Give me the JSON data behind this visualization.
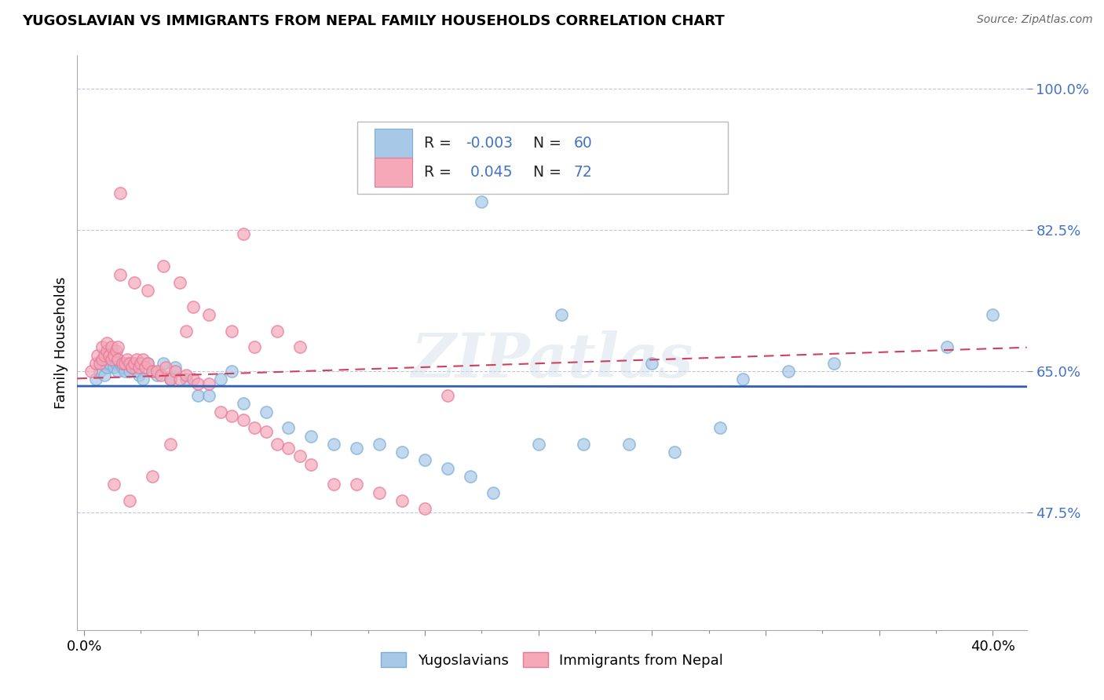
{
  "title": "YUGOSLAVIAN VS IMMIGRANTS FROM NEPAL FAMILY HOUSEHOLDS CORRELATION CHART",
  "source": "Source: ZipAtlas.com",
  "ylabel": "Family Households",
  "yticks": [
    "47.5%",
    "65.0%",
    "82.5%",
    "100.0%"
  ],
  "ytick_vals": [
    0.475,
    0.65,
    0.825,
    1.0
  ],
  "ymin": 0.33,
  "ymax": 1.04,
  "xmin": -0.003,
  "xmax": 0.415,
  "r_blue": -0.003,
  "n_blue": 60,
  "r_pink": 0.045,
  "n_pink": 72,
  "blue_marker_color": "#a8c8e8",
  "pink_marker_color": "#f4a8b8",
  "blue_edge_color": "#7aaed4",
  "pink_edge_color": "#e87898",
  "trend_blue": "#3060b0",
  "trend_pink": "#d04060",
  "watermark": "ZIPatlas",
  "legend_label_blue": "Yugoslavians",
  "legend_label_pink": "Immigrants from Nepal",
  "blue_legend_color": "#a8c8e8",
  "pink_legend_color": "#f4a8b8",
  "blue_x": [
    0.005,
    0.007,
    0.008,
    0.009,
    0.01,
    0.01,
    0.011,
    0.012,
    0.012,
    0.013,
    0.014,
    0.015,
    0.015,
    0.016,
    0.017,
    0.018,
    0.019,
    0.02,
    0.021,
    0.022,
    0.023,
    0.024,
    0.025,
    0.026,
    0.028,
    0.03,
    0.032,
    0.035,
    0.038,
    0.04,
    0.045,
    0.05,
    0.055,
    0.06,
    0.065,
    0.07,
    0.08,
    0.09,
    0.1,
    0.11,
    0.12,
    0.13,
    0.14,
    0.15,
    0.16,
    0.17,
    0.18,
    0.2,
    0.22,
    0.24,
    0.26,
    0.28,
    0.175,
    0.21,
    0.33,
    0.38,
    0.4,
    0.29,
    0.25,
    0.31
  ],
  "blue_y": [
    0.64,
    0.65,
    0.66,
    0.645,
    0.655,
    0.67,
    0.66,
    0.665,
    0.675,
    0.655,
    0.66,
    0.65,
    0.665,
    0.66,
    0.655,
    0.65,
    0.66,
    0.65,
    0.655,
    0.66,
    0.65,
    0.645,
    0.66,
    0.64,
    0.66,
    0.65,
    0.645,
    0.66,
    0.64,
    0.655,
    0.64,
    0.62,
    0.62,
    0.64,
    0.65,
    0.61,
    0.6,
    0.58,
    0.57,
    0.56,
    0.555,
    0.56,
    0.55,
    0.54,
    0.53,
    0.52,
    0.5,
    0.56,
    0.56,
    0.56,
    0.55,
    0.58,
    0.86,
    0.72,
    0.66,
    0.68,
    0.72,
    0.64,
    0.66,
    0.65
  ],
  "pink_x": [
    0.003,
    0.005,
    0.006,
    0.007,
    0.008,
    0.008,
    0.009,
    0.01,
    0.01,
    0.011,
    0.012,
    0.012,
    0.013,
    0.014,
    0.015,
    0.015,
    0.016,
    0.017,
    0.018,
    0.019,
    0.02,
    0.021,
    0.022,
    0.023,
    0.024,
    0.025,
    0.026,
    0.027,
    0.028,
    0.03,
    0.032,
    0.034,
    0.036,
    0.038,
    0.04,
    0.042,
    0.045,
    0.048,
    0.05,
    0.055,
    0.06,
    0.065,
    0.07,
    0.075,
    0.08,
    0.085,
    0.09,
    0.095,
    0.1,
    0.11,
    0.12,
    0.13,
    0.14,
    0.15,
    0.16,
    0.016,
    0.022,
    0.028,
    0.035,
    0.042,
    0.048,
    0.055,
    0.065,
    0.075,
    0.085,
    0.095,
    0.038,
    0.03,
    0.02,
    0.013,
    0.045,
    0.07
  ],
  "pink_y": [
    0.65,
    0.66,
    0.67,
    0.66,
    0.665,
    0.68,
    0.67,
    0.675,
    0.685,
    0.67,
    0.665,
    0.68,
    0.67,
    0.675,
    0.665,
    0.68,
    0.87,
    0.66,
    0.66,
    0.665,
    0.66,
    0.655,
    0.66,
    0.665,
    0.655,
    0.66,
    0.665,
    0.655,
    0.66,
    0.65,
    0.65,
    0.645,
    0.655,
    0.64,
    0.65,
    0.64,
    0.645,
    0.64,
    0.635,
    0.635,
    0.6,
    0.595,
    0.59,
    0.58,
    0.575,
    0.56,
    0.555,
    0.545,
    0.535,
    0.51,
    0.51,
    0.5,
    0.49,
    0.48,
    0.62,
    0.77,
    0.76,
    0.75,
    0.78,
    0.76,
    0.73,
    0.72,
    0.7,
    0.68,
    0.7,
    0.68,
    0.56,
    0.52,
    0.49,
    0.51,
    0.7,
    0.82
  ]
}
